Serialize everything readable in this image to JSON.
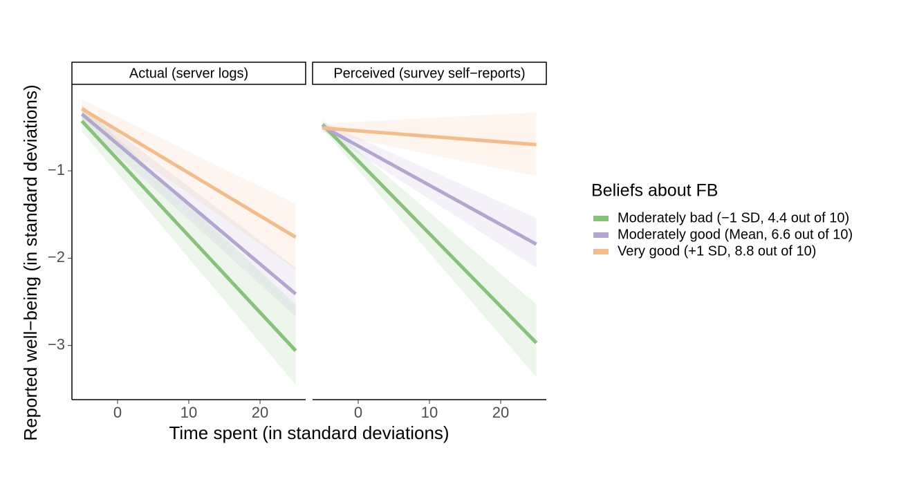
{
  "chart_data": [
    {
      "type": "line",
      "strip": "Actual (server logs)",
      "ylabel": "Reported well−being (in standard deviations)",
      "xlabel": "Time spent  (in standard deviations)",
      "legend_title": "Beliefs about FB",
      "x": [
        -5,
        25
      ],
      "xlim": [
        -6.4,
        26.4
      ],
      "xticks": [
        0,
        10,
        20
      ],
      "ylim": [
        -3.62,
        -0.01
      ],
      "yticks": [
        {
          "value": -3,
          "label": "−3"
        },
        {
          "value": -2,
          "label": "−2"
        },
        {
          "value": -1,
          "label": "−1"
        }
      ],
      "series": [
        {
          "name": "Moderately bad (−1 SD, 4.4 out of 10)",
          "color": "#86c27a",
          "values": [
            -0.43,
            -3.06
          ],
          "lower": [
            -0.55,
            -3.45
          ],
          "upper": [
            -0.25,
            -2.53
          ]
        },
        {
          "name": "Moderately good (Mean, 6.6 out of 10)",
          "color": "#b3a6d1",
          "values": [
            -0.35,
            -2.41
          ],
          "lower": [
            -0.45,
            -2.67
          ],
          "upper": [
            -0.25,
            -2.11
          ]
        },
        {
          "name": "Very good (+1 SD, 8.8 out of 10)",
          "color": "#f2bd8a",
          "values": [
            -0.29,
            -1.76
          ],
          "lower": [
            -0.4,
            -2.13
          ],
          "upper": [
            -0.18,
            -1.38
          ]
        }
      ]
    },
    {
      "type": "line",
      "strip": "Perceived (survey self−reports)",
      "x": [
        -5,
        25
      ],
      "xlim": [
        -6.4,
        26.4
      ],
      "xticks": [
        0,
        10,
        20
      ],
      "ylim": [
        -3.62,
        -0.01
      ],
      "series": [
        {
          "name": "Moderately bad (−1 SD, 4.4 out of 10)",
          "color": "#86c27a",
          "values": [
            -0.47,
            -2.97
          ],
          "lower": [
            -0.52,
            -3.36
          ],
          "upper": [
            -0.42,
            -2.53
          ]
        },
        {
          "name": "Moderately good (Mean, 6.6 out of 10)",
          "color": "#b3a6d1",
          "values": [
            -0.49,
            -1.84
          ],
          "lower": [
            -0.54,
            -2.11
          ],
          "upper": [
            -0.44,
            -1.54
          ]
        },
        {
          "name": "Very good (+1 SD, 8.8 out of 10)",
          "color": "#f2bd8a",
          "values": [
            -0.51,
            -0.7
          ],
          "lower": [
            -0.56,
            -1.06
          ],
          "upper": [
            -0.46,
            -0.33
          ]
        }
      ]
    }
  ]
}
